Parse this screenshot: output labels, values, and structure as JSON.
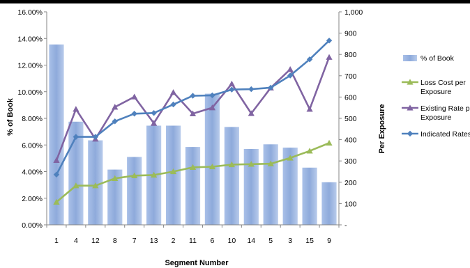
{
  "chart_data": {
    "type": "bar+line",
    "categories": [
      "1",
      "4",
      "12",
      "8",
      "7",
      "13",
      "2",
      "11",
      "6",
      "10",
      "14",
      "5",
      "3",
      "15",
      "9"
    ],
    "xlabel": "Segment Number",
    "ylabel_left": "% of Book",
    "ylabel_right": "Per Exposure",
    "left_axis": {
      "min": 0,
      "max": 16,
      "step": 2,
      "tick_labels": [
        "0.00%",
        "2.00%",
        "4.00%",
        "6.00%",
        "8.00%",
        "10.00%",
        "12.00%",
        "14.00%",
        "16.00%"
      ]
    },
    "right_axis": {
      "min": 0,
      "max": 1000,
      "step": 100,
      "tick_labels": [
        "-",
        "100",
        "200",
        "300",
        "400",
        "500",
        "600",
        "700",
        "800",
        "900",
        "1,000"
      ]
    },
    "grid": false,
    "legend_position": "right",
    "bars": {
      "name": "% of Book",
      "axis": "left",
      "color": "#8eaadb",
      "values": [
        13.55,
        7.75,
        6.35,
        4.15,
        5.1,
        7.45,
        7.45,
        5.85,
        9.85,
        7.35,
        5.7,
        6.05,
        5.8,
        4.3,
        3.2
      ]
    },
    "series": [
      {
        "name": "Loss Cost per Exposure",
        "axis": "right",
        "color": "#9bbb59",
        "marker": "triangle",
        "values": [
          107,
          184,
          184,
          218,
          231,
          234,
          250,
          270,
          273,
          283,
          285,
          287,
          314,
          347,
          384
        ]
      },
      {
        "name": "Existing Rate per Exposure",
        "axis": "right",
        "color": "#8064a2",
        "marker": "triangle",
        "values": [
          303,
          543,
          403,
          553,
          601,
          477,
          622,
          522,
          550,
          662,
          523,
          643,
          730,
          543,
          787
        ]
      },
      {
        "name": "Indicated Rates",
        "axis": "right",
        "color": "#4f81bd",
        "marker": "diamond",
        "values": [
          236,
          413,
          413,
          486,
          522,
          525,
          565,
          606,
          608,
          635,
          637,
          644,
          701,
          777,
          865
        ]
      }
    ],
    "legend": [
      {
        "label": "% of Book",
        "type": "bar",
        "color": "#8eaadb",
        "lines": [
          "% of Book"
        ]
      },
      {
        "label": "Loss Cost per Exposure",
        "type": "line",
        "color": "#9bbb59",
        "marker": "triangle",
        "lines": [
          "Loss Cost per",
          "Exposure"
        ]
      },
      {
        "label": "Existing Rate per Exposure",
        "type": "line",
        "color": "#8064a2",
        "marker": "triangle",
        "lines": [
          "Existing Rate per",
          "Exposure"
        ]
      },
      {
        "label": "Indicated Rates",
        "type": "line",
        "color": "#4f81bd",
        "marker": "diamond",
        "lines": [
          "Indicated Rates"
        ]
      }
    ]
  }
}
